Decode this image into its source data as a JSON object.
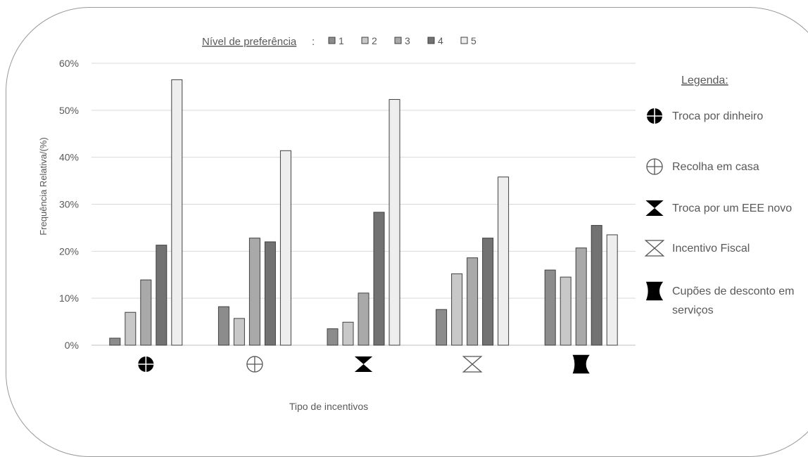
{
  "chart_data": {
    "type": "bar",
    "title": "",
    "xlabel": "Tipo de incentivos",
    "ylabel": "Frequência Relativa/(%)",
    "ylim": [
      0,
      60
    ],
    "yticks": [
      "0%",
      "10%",
      "20%",
      "30%",
      "40%",
      "50%",
      "60%"
    ],
    "grid": true,
    "categories": [
      "Troca por dinheiro",
      "Recolha em casa",
      "Troca por um EEE novo",
      "Incentivo Fiscal",
      "Cupões de desconto em serviços"
    ],
    "category_icons": [
      "circle-plus-filled-icon",
      "circle-plus-outline-icon",
      "hourglass-filled-icon",
      "hourglass-outline-icon",
      "coupon-shape-icon"
    ],
    "series_legend_title": "Nível de preferência",
    "series": [
      {
        "name": "1",
        "color": "#8c8c8c",
        "values": [
          1.5,
          8.2,
          3.5,
          7.6,
          16.0
        ]
      },
      {
        "name": "2",
        "color": "#c8c8c8",
        "values": [
          7.0,
          5.7,
          4.9,
          15.2,
          14.5
        ]
      },
      {
        "name": "3",
        "color": "#a9a9a9",
        "values": [
          13.9,
          22.8,
          11.1,
          18.6,
          20.7
        ]
      },
      {
        "name": "4",
        "color": "#727272",
        "values": [
          21.3,
          22.0,
          28.3,
          22.8,
          25.5
        ]
      },
      {
        "name": "5",
        "color": "#eeeeee",
        "values": [
          56.5,
          41.4,
          52.3,
          35.8,
          23.5
        ]
      }
    ],
    "legend_placement": "top",
    "category_legend": {
      "title": "Legenda:",
      "placement": "right",
      "items": [
        {
          "icon": "circle-plus-filled-icon",
          "label": "Troca por dinheiro"
        },
        {
          "icon": "circle-plus-outline-icon",
          "label": "Recolha em casa"
        },
        {
          "icon": "hourglass-filled-icon",
          "label": "Troca por um EEE novo"
        },
        {
          "icon": "hourglass-outline-icon",
          "label": "Incentivo Fiscal"
        },
        {
          "icon": "coupon-shape-icon",
          "label": "Cupões de desconto em serviços",
          "lines": [
            "Cupões de desconto em",
            "serviços"
          ]
        }
      ]
    }
  }
}
